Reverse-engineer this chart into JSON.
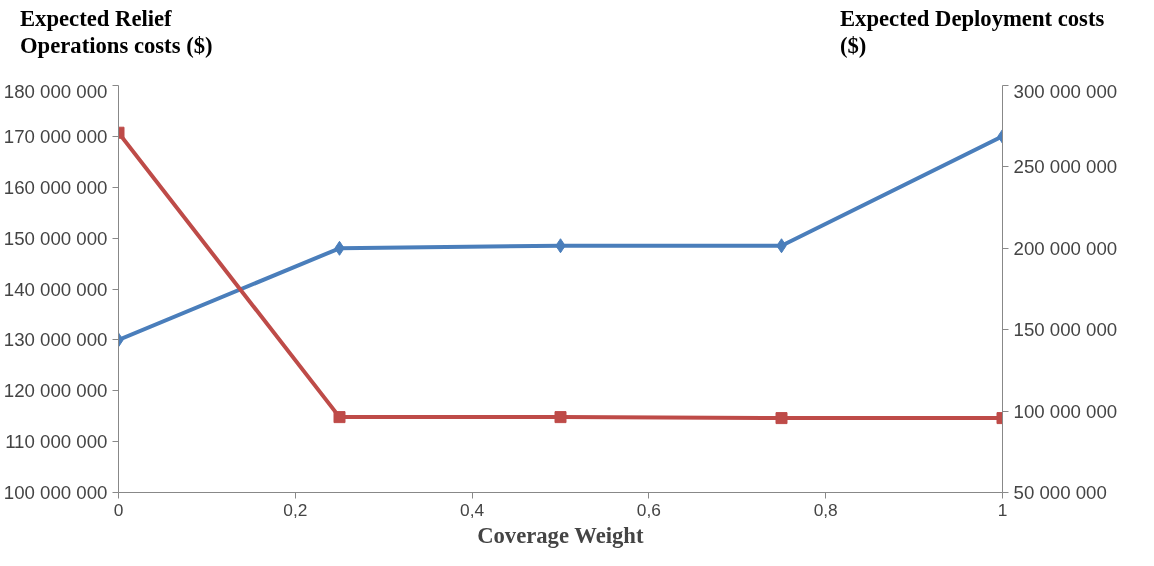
{
  "chart_data": {
    "type": "line",
    "xlabel": "Coverage Weight",
    "ylabel": "Expected Relief Operations costs ($)",
    "y2label": "Expected Deployment costs ($)",
    "x": [
      0,
      0.25,
      0.5,
      0.75,
      1
    ],
    "xlim": [
      0,
      1
    ],
    "xticks": [
      {
        "value": 0,
        "label": "0"
      },
      {
        "value": 0.2,
        "label": "0,2"
      },
      {
        "value": 0.4,
        "label": "0,4"
      },
      {
        "value": 0.6,
        "label": "0,6"
      },
      {
        "value": 0.8,
        "label": "0,8"
      },
      {
        "value": 1,
        "label": "1"
      }
    ],
    "ylim": [
      100000000,
      180000000
    ],
    "yticks": [
      {
        "value": 100000000,
        "label": "100 000 000"
      },
      {
        "value": 110000000,
        "label": "110 000 000"
      },
      {
        "value": 120000000,
        "label": "120 000 000"
      },
      {
        "value": 130000000,
        "label": "130 000 000"
      },
      {
        "value": 140000000,
        "label": "140 000 000"
      },
      {
        "value": 150000000,
        "label": "150 000 000"
      },
      {
        "value": 160000000,
        "label": "160 000 000"
      },
      {
        "value": 170000000,
        "label": "170 000 000"
      },
      {
        "value": 180000000,
        "label": "180 000 000"
      }
    ],
    "y2lim": [
      50000000,
      300000000
    ],
    "y2ticks": [
      {
        "value": 50000000,
        "label": "50 000 000"
      },
      {
        "value": 100000000,
        "label": "100 000 000"
      },
      {
        "value": 150000000,
        "label": "150 000 000"
      },
      {
        "value": 200000000,
        "label": "200 000 000"
      },
      {
        "value": 250000000,
        "label": "250 000 000"
      },
      {
        "value": 300000000,
        "label": "300 000 000"
      }
    ],
    "grid": false,
    "series": [
      {
        "color": "#4a7ebb",
        "marker": "diamond",
        "values": [
          130000000,
          148000000,
          148500000,
          148500000,
          170000000
        ]
      },
      {
        "color": "#be4b48",
        "marker": "square",
        "axis": "y2",
        "values": [
          271000000,
          96300000,
          96300000,
          95700000,
          95700000
        ]
      }
    ]
  }
}
